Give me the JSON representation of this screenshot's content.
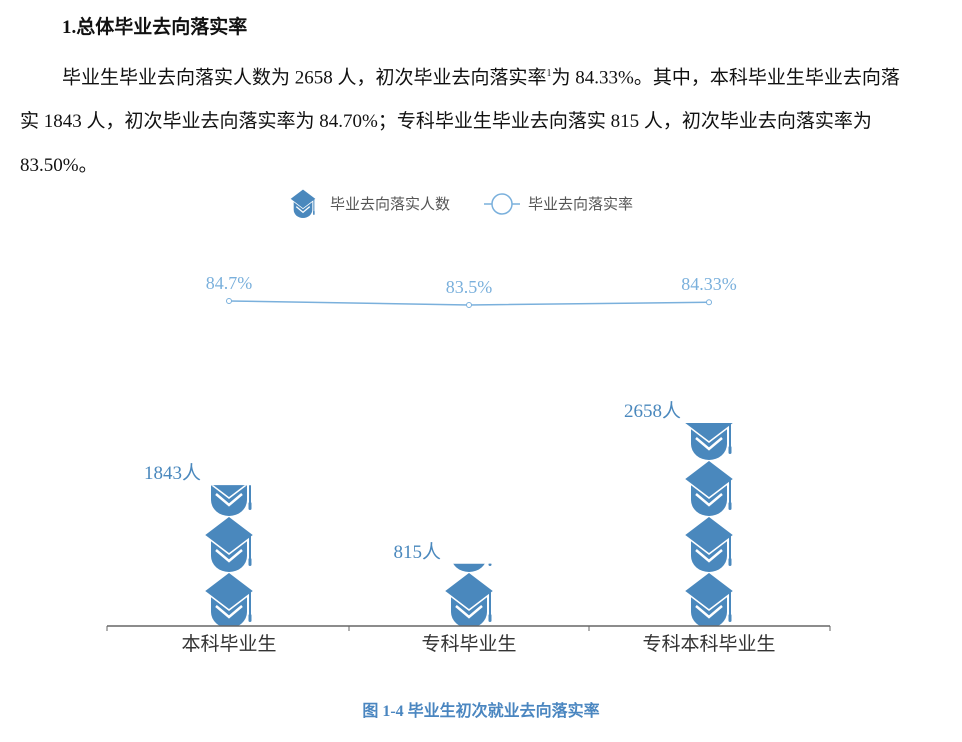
{
  "heading": "1.总体毕业去向落实率",
  "paragraph": {
    "p1": "毕业生毕业去向落实人数为 2658 人，初次毕业去向落实率",
    "footnote": "1",
    "p2": "为 84.33%。其中，本科毕业生毕业去向落实 1843 人，初次毕业去向落实率为 84.70%；专科毕业生毕业去向落实 815 人，初次毕业去向落实率为 83.50%。"
  },
  "caption": "图 1-4  毕业生初次就业去向落实率",
  "chart_data": {
    "type": "bar",
    "subtype": "pictorial-bar with line",
    "icon": "graduation-cap-icon",
    "categories": [
      "本科毕业生",
      "专科毕业生",
      "专科本科毕业生"
    ],
    "legend_position": "top",
    "grid": false,
    "colors": {
      "bar": "#4a88bd",
      "line": "#7ab0dc",
      "label": "#4a88bd"
    },
    "series": [
      {
        "name": "毕业去向落实人数",
        "type": "pictorialBar",
        "values": [
          1843,
          815,
          2658
        ],
        "labels": [
          "1843人",
          "815人",
          "2658人"
        ]
      },
      {
        "name": "毕业去向落实率",
        "type": "line",
        "values": [
          84.7,
          83.5,
          84.33
        ],
        "labels": [
          "84.7%",
          "83.5%",
          "84.33%"
        ]
      }
    ]
  }
}
